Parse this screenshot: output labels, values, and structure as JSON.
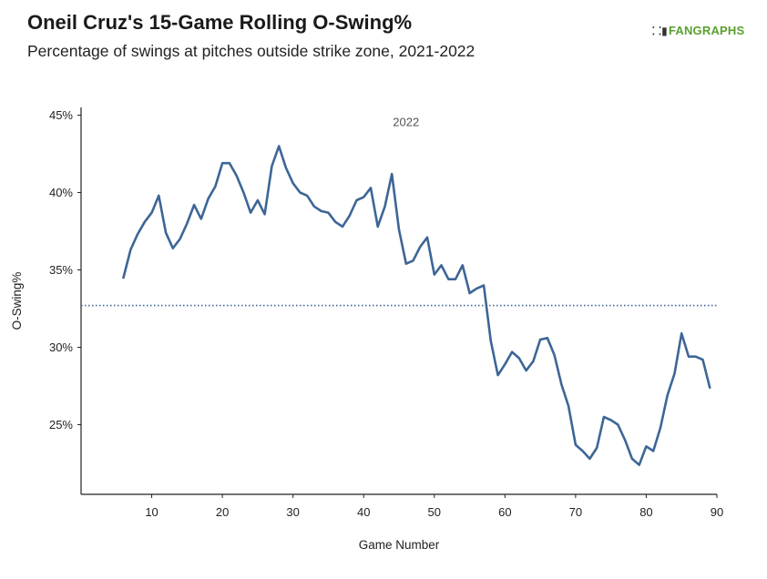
{
  "header": {
    "title": "Oneil Cruz's 15-Game Rolling O-Swing%",
    "subtitle": "Percentage of swings at pitches outside strike zone, 2021-2022",
    "logo_text": "FANGRAPHS",
    "logo_icon": "fangraphs-logo-icon"
  },
  "colors": {
    "line": "#3d6696",
    "reference_line": "#3d6696",
    "axis": "#222222",
    "logo": "#5aa02c"
  },
  "chart_data": {
    "type": "line",
    "title": "Oneil Cruz's 15-Game Rolling O-Swing%",
    "subtitle": "Percentage of swings at pitches outside strike zone, 2021-2022",
    "xlabel": "Game Number",
    "ylabel": "O-Swing%",
    "xlim": [
      0,
      90
    ],
    "ylim": [
      20.5,
      45.5
    ],
    "xticks": [
      10,
      20,
      30,
      40,
      50,
      60,
      70,
      80,
      90
    ],
    "xtick_labels": [
      "10",
      "20",
      "30",
      "40",
      "50",
      "60",
      "70",
      "80",
      "90"
    ],
    "yticks": [
      25,
      30,
      35,
      40,
      45
    ],
    "ytick_labels": [
      "25%",
      "30%",
      "35%",
      "40%",
      "45%"
    ],
    "grid": false,
    "reference_line": {
      "y": 32.7,
      "style": "dotted"
    },
    "annotations": [
      {
        "text": "2022",
        "x": 46,
        "y": 44.3
      }
    ],
    "series": [
      {
        "x": [
          6,
          7,
          8,
          9,
          10,
          11,
          12,
          13,
          14,
          15,
          16,
          17,
          18,
          19,
          20,
          21,
          22,
          23,
          24,
          25,
          26,
          27,
          28,
          29,
          30,
          31,
          32,
          33,
          34,
          35,
          36,
          37,
          38,
          39,
          40,
          41,
          42,
          43,
          44,
          45,
          46,
          47,
          48,
          49,
          50,
          51,
          52,
          53,
          54,
          55,
          56,
          57,
          58,
          59,
          60,
          61,
          62,
          63,
          64,
          65,
          66,
          67,
          68,
          69,
          70,
          71,
          72,
          73,
          74,
          75,
          76,
          77,
          78,
          79,
          80,
          81,
          82,
          83,
          84,
          85,
          86,
          87,
          88,
          89
        ],
        "values": [
          34.5,
          36.3,
          37.3,
          38.1,
          38.7,
          39.8,
          37.4,
          36.4,
          37.0,
          38.0,
          39.2,
          38.3,
          39.6,
          40.4,
          41.9,
          41.9,
          41.1,
          40.0,
          38.7,
          39.5,
          38.6,
          41.7,
          43.0,
          41.6,
          40.6,
          40.0,
          39.8,
          39.1,
          38.8,
          38.7,
          38.1,
          37.8,
          38.5,
          39.5,
          39.7,
          40.3,
          37.8,
          39.1,
          41.2,
          37.6,
          35.4,
          35.6,
          36.5,
          37.1,
          34.7,
          35.3,
          34.4,
          34.4,
          35.3,
          33.5,
          33.8,
          34.0,
          30.4,
          28.2,
          28.9,
          29.7,
          29.3,
          28.5,
          29.1,
          30.5,
          30.6,
          29.5,
          27.6,
          26.2,
          23.7,
          23.3,
          22.8,
          23.5,
          25.5,
          25.3,
          25.0,
          24.0,
          22.8,
          22.4,
          23.6,
          23.3,
          24.8,
          26.9,
          28.3,
          30.9,
          29.4,
          29.4,
          29.2,
          27.4
        ]
      }
    ]
  }
}
